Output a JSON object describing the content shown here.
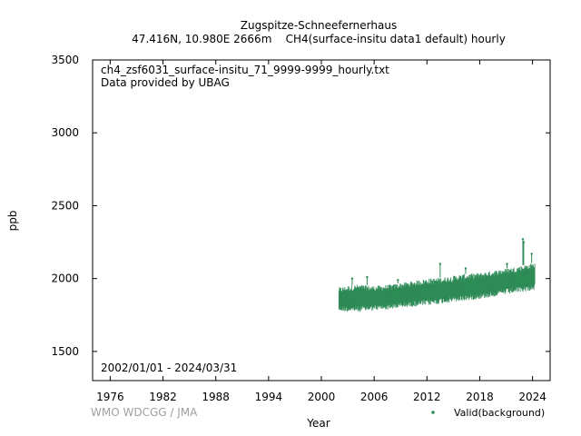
{
  "chart_data": {
    "type": "scatter",
    "title": "Zugspitze-Schneefernerhaus",
    "subtitle": "47.416N, 10.980E 2666m    CH4(surface-insitu data1 default) hourly",
    "xlabel": "Year",
    "ylabel": "ppb",
    "xlim": [
      1974,
      2026
    ],
    "ylim": [
      1300,
      3500
    ],
    "xticks": [
      "1976",
      "1982",
      "1988",
      "1994",
      "2000",
      "2006",
      "2012",
      "2018",
      "2024"
    ],
    "yticks": [
      "1500",
      "2000",
      "2500",
      "3000",
      "3500"
    ],
    "annotations": {
      "filename": "ch4_zsf6031_surface-insitu_71_9999-9999_hourly.txt",
      "provider": "Data provided by UBAG",
      "period": "2002/01/01 - 2024/03/31"
    },
    "credit": "WMO WDCGG / JMA",
    "legend": {
      "position": "bottom-right",
      "label": "Valid(background)"
    },
    "series": [
      {
        "name": "Valid(background)",
        "color": "#2e8b57",
        "band": {
          "x": [
            2002.0,
            2004.0,
            2006.0,
            2008.0,
            2010.0,
            2012.0,
            2014.0,
            2016.0,
            2018.0,
            2020.0,
            2022.0,
            2024.25
          ],
          "low": [
            1775,
            1770,
            1780,
            1790,
            1805,
            1815,
            1830,
            1845,
            1860,
            1880,
            1900,
            1920
          ],
          "high": [
            1940,
            1960,
            1950,
            1960,
            1980,
            2000,
            2010,
            2030,
            2040,
            2060,
            2080,
            2110
          ]
        },
        "spikes": [
          {
            "x": 2003.5,
            "y": 2000
          },
          {
            "x": 2005.2,
            "y": 2010
          },
          {
            "x": 2008.7,
            "y": 1990
          },
          {
            "x": 2013.5,
            "y": 2100
          },
          {
            "x": 2016.4,
            "y": 2070
          },
          {
            "x": 2021.1,
            "y": 2100
          },
          {
            "x": 2022.9,
            "y": 2270
          },
          {
            "x": 2023.0,
            "y": 2250
          },
          {
            "x": 2023.9,
            "y": 2170
          }
        ]
      }
    ]
  }
}
